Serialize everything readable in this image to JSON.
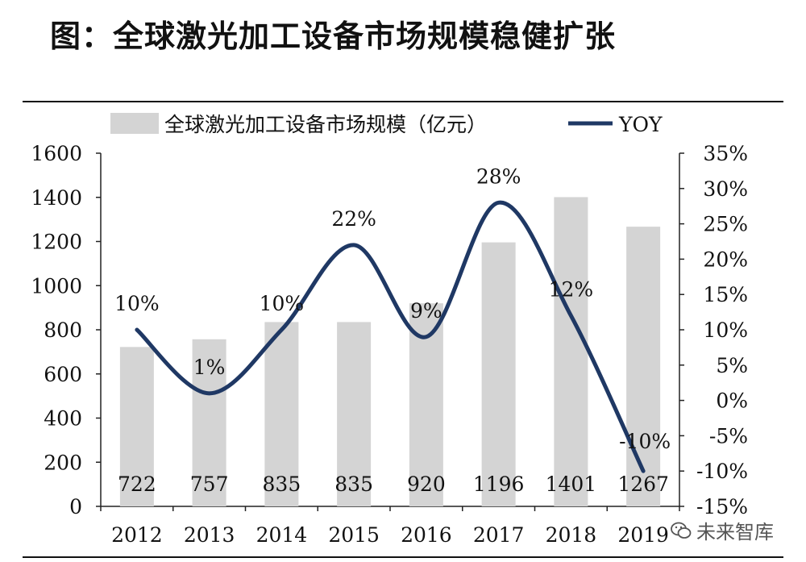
{
  "title": "图：全球激光加工设备市场规模稳健扩张",
  "watermark": "未来智库",
  "colors": {
    "bar": "#d4d4d4",
    "line": "#1f3864",
    "text": "#111111"
  },
  "chart_data": {
    "type": "bar",
    "categories": [
      "2012",
      "2013",
      "2014",
      "2015",
      "2016",
      "2017",
      "2018",
      "2019"
    ],
    "series": [
      {
        "name": "全球激光加工设备市场规模（亿元）",
        "type": "bar",
        "axis": "left",
        "values": [
          722,
          757,
          835,
          835,
          920,
          1196,
          1401,
          1267
        ],
        "labels": [
          "722",
          "757",
          "835",
          "835",
          "920",
          "1196",
          "1401",
          "1267"
        ]
      },
      {
        "name": "YOY",
        "type": "line",
        "axis": "right",
        "values": [
          10,
          1,
          10,
          22,
          9,
          28,
          12,
          -10
        ],
        "labels": [
          "10%",
          "1%",
          "10%",
          "22%",
          "9%",
          "28%",
          "12%",
          "-10%"
        ]
      }
    ],
    "y_left": {
      "min": 0,
      "max": 1600,
      "ticks": [
        "0",
        "200",
        "400",
        "600",
        "800",
        "1000",
        "1200",
        "1400",
        "1600"
      ]
    },
    "y_right": {
      "min": -15,
      "max": 35,
      "ticks": [
        "-15%",
        "-10%",
        "-5%",
        "0%",
        "5%",
        "10%",
        "15%",
        "20%",
        "25%",
        "30%",
        "35%"
      ]
    },
    "legend_position": "top",
    "grid": false
  }
}
